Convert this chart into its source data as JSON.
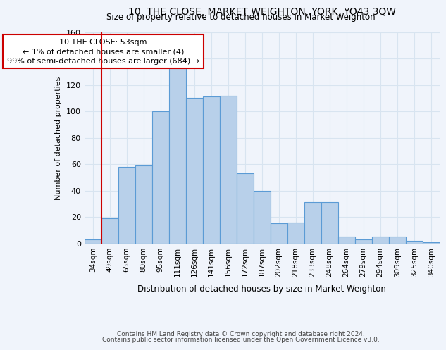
{
  "title": "10, THE CLOSE, MARKET WEIGHTON, YORK, YO43 3QW",
  "subtitle": "Size of property relative to detached houses in Market Weighton",
  "xlabel": "Distribution of detached houses by size in Market Weighton",
  "ylabel": "Number of detached properties",
  "categories": [
    "34sqm",
    "49sqm",
    "65sqm",
    "80sqm",
    "95sqm",
    "111sqm",
    "126sqm",
    "141sqm",
    "156sqm",
    "172sqm",
    "187sqm",
    "202sqm",
    "218sqm",
    "233sqm",
    "248sqm",
    "264sqm",
    "279sqm",
    "294sqm",
    "309sqm",
    "325sqm",
    "340sqm"
  ],
  "bar_heights": [
    3,
    19,
    58,
    59,
    100,
    133,
    110,
    111,
    112,
    53,
    40,
    15,
    16,
    31,
    31,
    5,
    3,
    5,
    5,
    2,
    1
  ],
  "bar_color": "#b8d0ea",
  "bar_edge_color": "#5b9bd5",
  "vline_color": "#cc0000",
  "annotation_text": "10 THE CLOSE: 53sqm\n← 1% of detached houses are smaller (4)\n99% of semi-detached houses are larger (684) →",
  "annotation_box_color": "#ffffff",
  "annotation_box_edge": "#cc0000",
  "ylim": [
    0,
    160
  ],
  "yticks": [
    0,
    20,
    40,
    60,
    80,
    100,
    120,
    140,
    160
  ],
  "footer1": "Contains HM Land Registry data © Crown copyright and database right 2024.",
  "footer2": "Contains public sector information licensed under the Open Government Licence v3.0.",
  "bg_color": "#f0f4fb",
  "grid_color": "#d8e4f0"
}
